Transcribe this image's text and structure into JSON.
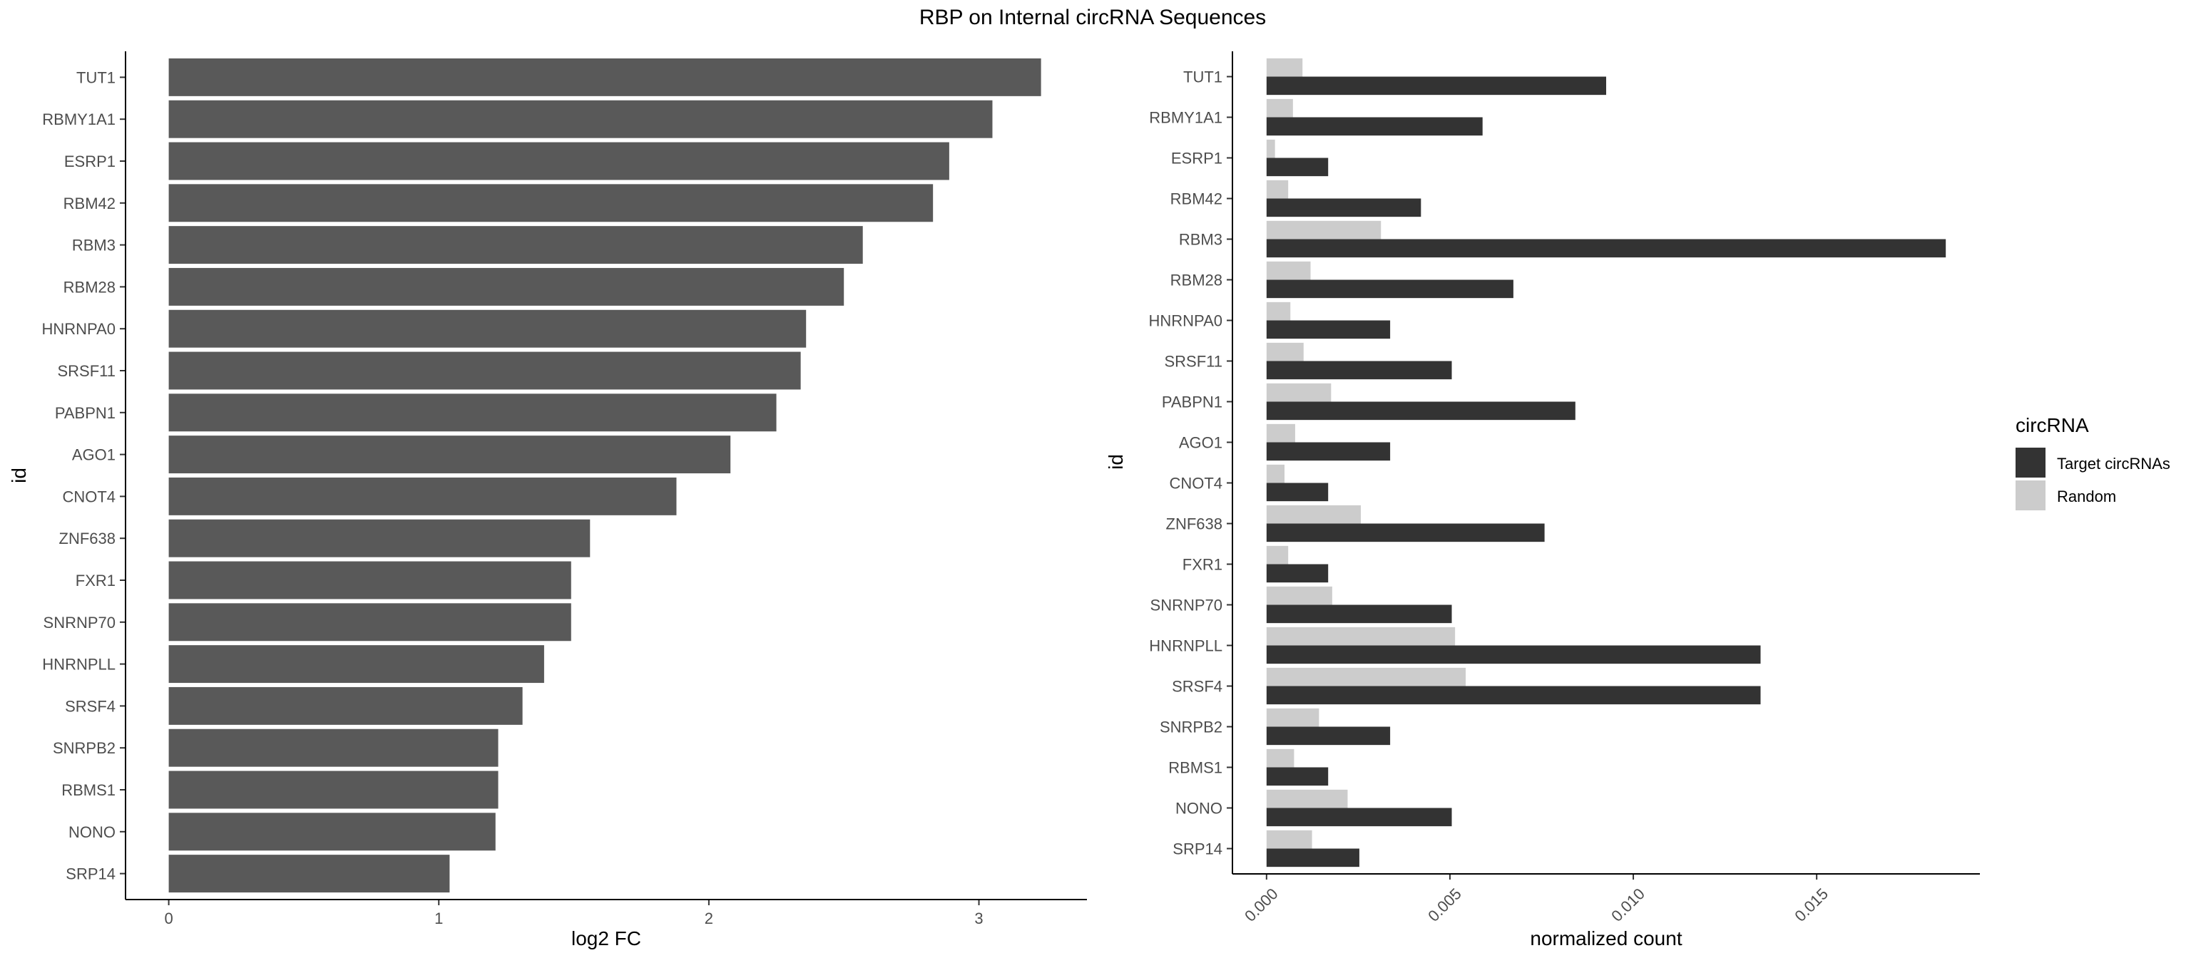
{
  "title": "RBP on Internal circRNA Sequences",
  "chart_data": [
    {
      "type": "bar",
      "orientation": "horizontal",
      "categories": [
        "TUT1",
        "RBMY1A1",
        "ESRP1",
        "RBM42",
        "RBM3",
        "RBM28",
        "HNRNPA0",
        "SRSF11",
        "PABPN1",
        "AGO1",
        "CNOT4",
        "ZNF638",
        "FXR1",
        "SNRNP70",
        "HNRNPLL",
        "SRSF4",
        "SNRPB2",
        "RBMS1",
        "NONO",
        "SRP14"
      ],
      "values": [
        3.23,
        3.05,
        2.89,
        2.83,
        2.57,
        2.5,
        2.36,
        2.34,
        2.25,
        2.08,
        1.88,
        1.56,
        1.49,
        1.49,
        1.39,
        1.31,
        1.22,
        1.22,
        1.21,
        1.04
      ],
      "xlabel": "log2 FC",
      "ylabel": "id",
      "xlim": [
        -0.16,
        3.4
      ],
      "xticks": [
        0,
        1,
        2,
        3
      ],
      "xtick_labels": [
        "0",
        "1",
        "2",
        "3"
      ],
      "bar_color": "#595959",
      "grid": false
    },
    {
      "type": "bar",
      "orientation": "horizontal",
      "grouped": true,
      "categories": [
        "TUT1",
        "RBMY1A1",
        "ESRP1",
        "RBM42",
        "RBM3",
        "RBM28",
        "HNRNPA0",
        "SRSF11",
        "PABPN1",
        "AGO1",
        "CNOT4",
        "ZNF638",
        "FXR1",
        "SNRNP70",
        "HNRNPLL",
        "SRSF4",
        "SNRPB2",
        "RBMS1",
        "NONO",
        "SRP14"
      ],
      "series": [
        {
          "name": "Target circRNAs",
          "color": "#333333",
          "values": [
            0.00926,
            0.00589,
            0.00168,
            0.00421,
            0.01852,
            0.00673,
            0.00337,
            0.00505,
            0.00842,
            0.00337,
            0.00168,
            0.00758,
            0.00168,
            0.00505,
            0.01347,
            0.01347,
            0.00337,
            0.00168,
            0.00505,
            0.00253
          ]
        },
        {
          "name": "Random",
          "color": "#cccccc",
          "values": [
            0.00098,
            0.00072,
            0.00023,
            0.00059,
            0.00312,
            0.0012,
            0.00065,
            0.00101,
            0.00176,
            0.00078,
            0.00049,
            0.00257,
            0.00059,
            0.00179,
            0.00514,
            0.00543,
            0.00143,
            0.00075,
            0.00221,
            0.00124
          ]
        }
      ],
      "xlabel": "normalized count",
      "ylabel": "id",
      "xlim": [
        -0.00093,
        0.01945
      ],
      "xticks": [
        0,
        0.005,
        0.01,
        0.015
      ],
      "xtick_labels": [
        "0.000",
        "0.005",
        "0.010",
        "0.015"
      ],
      "legend": {
        "title": "circRNA",
        "placement": "right",
        "entries": [
          "Target circRNAs",
          "Random"
        ]
      },
      "grid": false
    }
  ]
}
